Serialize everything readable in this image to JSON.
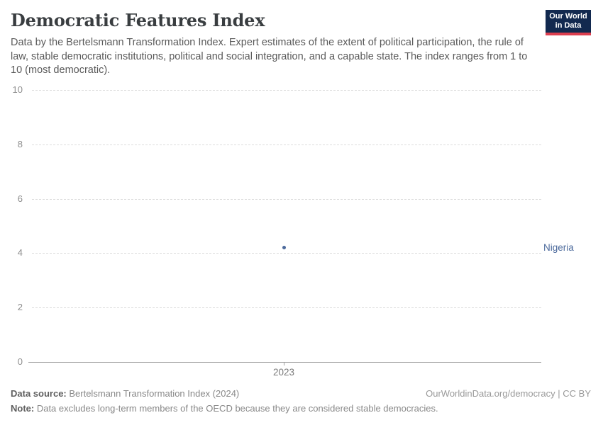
{
  "header": {
    "title": "Democratic Features Index",
    "subtitle": "Data by the Bertelsmann Transformation Index. Expert estimates of the extent of political participation, the rule of law, stable democratic institutions, political and social integration, and a capable state. The index ranges from 1 to 10 (most democratic)."
  },
  "logo": {
    "line1": "Our World",
    "line2": "in Data",
    "bg_color": "#12294f",
    "bar_color": "#dc3e4f"
  },
  "chart_data": {
    "type": "scatter",
    "title": "Democratic Features Index",
    "x": [
      2023
    ],
    "x_tick_labels": [
      "2023"
    ],
    "series": [
      {
        "name": "Nigeria",
        "values": [
          4.2
        ],
        "color": "#4c6a9c"
      }
    ],
    "entity_label": "Nigeria",
    "xlabel": "",
    "ylabel": "",
    "ylim": [
      0,
      10
    ],
    "y_ticks": [
      0,
      2,
      4,
      6,
      8,
      10
    ],
    "grid": "horizontal dashed",
    "legend_position": "right-of-point"
  },
  "footer": {
    "data_source_label": "Data source:",
    "data_source_text": " Bertelsmann Transformation Index (2024)",
    "link_text": "OurWorldinData.org/democracy | CC BY",
    "note_label": "Note:",
    "note_text": " Data excludes long-term members of the OECD because they are considered stable democracies."
  },
  "colors": {
    "accent": "#4c6a9c",
    "grid": "#dcdcdc",
    "axis": "#a0a0a0",
    "tick_label": "#8e8e8e"
  }
}
